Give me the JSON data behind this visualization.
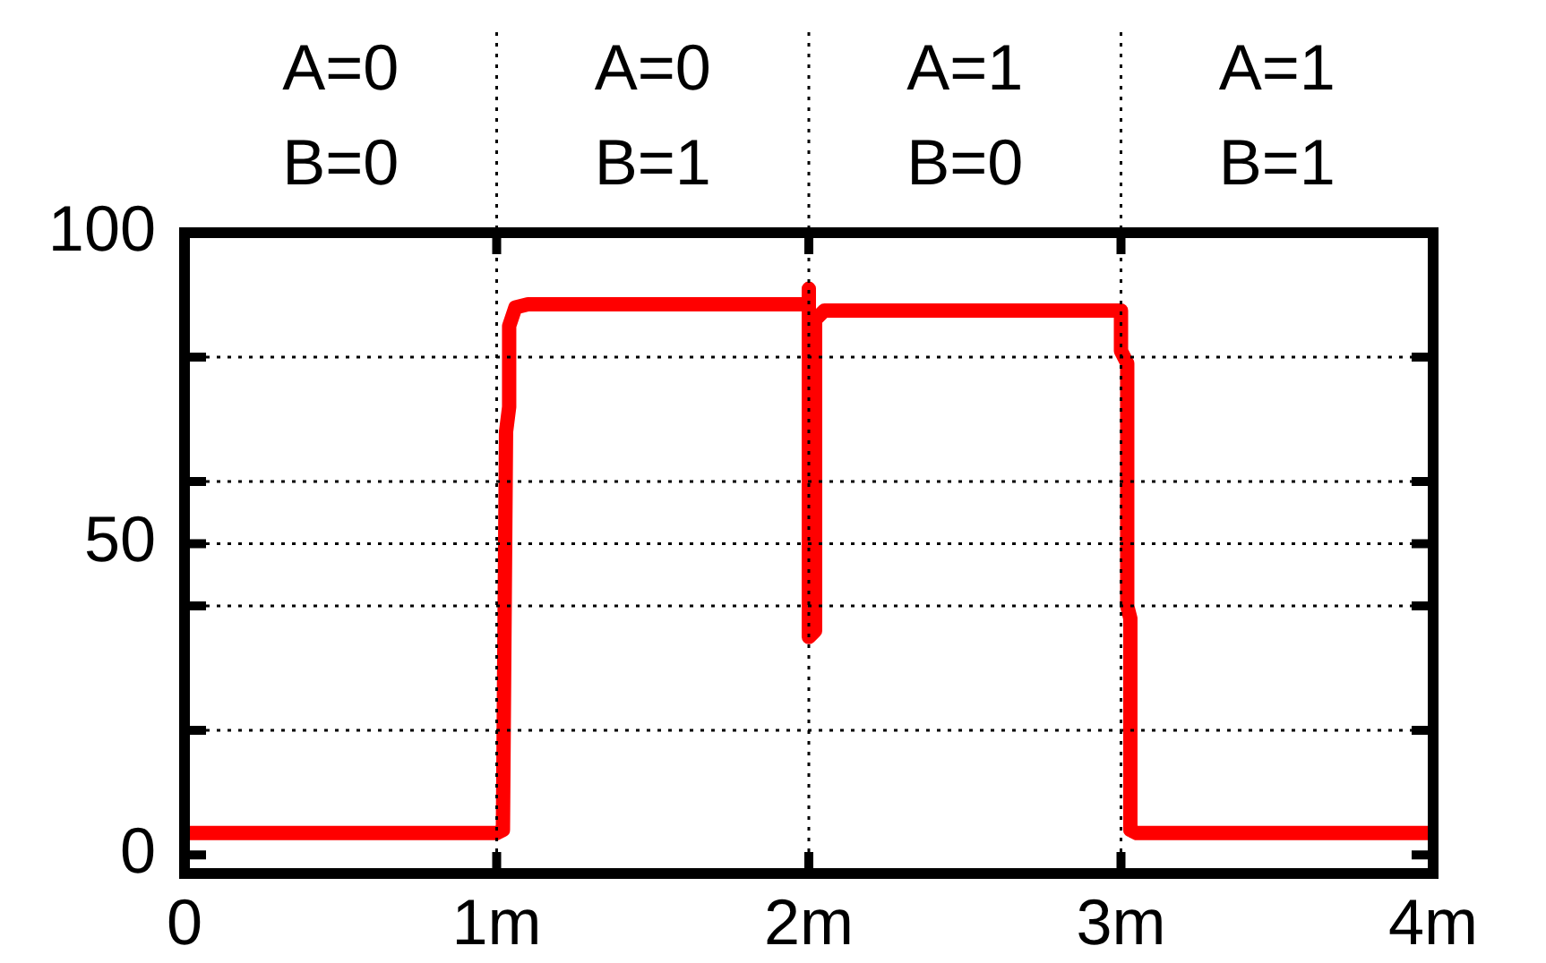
{
  "chart_data": {
    "type": "line",
    "series": [
      {
        "color": "#ff0000",
        "x": [
          0,
          1.0,
          1.02,
          1.03,
          1.04,
          1.04,
          1.06,
          1.1,
          2.0,
          2.0,
          2.0,
          2.02,
          2.02,
          2.05,
          3.0,
          3.0,
          3.02,
          3.02,
          3.03,
          3.03,
          3.05,
          4.0
        ],
        "values": [
          3.5,
          3.5,
          4,
          68,
          72,
          85,
          88,
          88.5,
          88.5,
          91,
          35,
          36,
          86,
          87.5,
          87.5,
          81,
          79,
          40,
          38,
          4,
          3.5,
          3.5
        ]
      }
    ],
    "xlim": [
      0,
      4
    ],
    "xticks": [
      0,
      {
        "value": 1,
        "label": "1m"
      },
      {
        "value": 2,
        "label": "2m"
      },
      {
        "value": 3,
        "label": "3m"
      },
      {
        "value": 4,
        "label": "4m"
      }
    ],
    "ylim": [
      -3,
      100
    ],
    "yticks": [
      0,
      {
        "value": 20,
        "label": null
      },
      {
        "value": 40,
        "label": null
      },
      50,
      {
        "value": 60,
        "label": null
      },
      {
        "value": 80,
        "label": null
      },
      100
    ],
    "grid": true,
    "legend": false,
    "marker": "none",
    "line_style": "solid",
    "annotations": [
      "A=0\nB=0",
      "A=0\nB=1",
      "A=1\nB=0",
      "A=1\nB=1"
    ]
  }
}
